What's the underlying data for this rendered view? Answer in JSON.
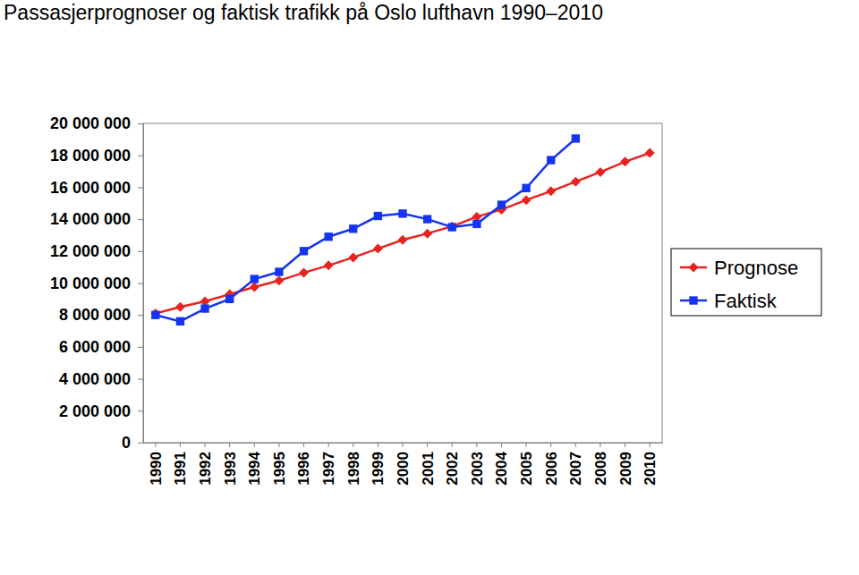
{
  "chart_data": {
    "type": "line",
    "title": "Passasjerprognoser og faktisk trafikk på Oslo lufthavn 1990–2010",
    "categories": [
      "1990",
      "1991",
      "1992",
      "1993",
      "1994",
      "1995",
      "1996",
      "1997",
      "1998",
      "1999",
      "2000",
      "2001",
      "2002",
      "2003",
      "2004",
      "2005",
      "2006",
      "2007",
      "2008",
      "2009",
      "2010"
    ],
    "series": [
      {
        "name": "Prognose",
        "color": "#e8231f",
        "marker": "diamond",
        "line_style": "solid",
        "values": [
          8100000,
          8500000,
          8850000,
          9300000,
          9750000,
          10150000,
          10650000,
          11100000,
          11600000,
          12150000,
          12700000,
          13100000,
          13550000,
          14150000,
          14600000,
          15200000,
          15750000,
          16350000,
          16950000,
          17600000,
          18150000
        ]
      },
      {
        "name": "Faktisk",
        "color": "#1433f2",
        "marker": "square",
        "line_style": "solid",
        "values": [
          8000000,
          7600000,
          8400000,
          9000000,
          10250000,
          10700000,
          12000000,
          12900000,
          13400000,
          14200000,
          14350000,
          14000000,
          13500000,
          13700000,
          14900000,
          15950000,
          17700000,
          19050000,
          null,
          null,
          null
        ]
      }
    ],
    "ylim": [
      0,
      20000000
    ],
    "yticks": [
      0,
      {
        "value": 2000000,
        "label": "2 000 000"
      },
      {
        "value": 4000000,
        "label": "4 000 000"
      },
      {
        "value": 6000000,
        "label": "6 000 000"
      },
      {
        "value": 8000000,
        "label": "8 000 000"
      },
      {
        "value": 10000000,
        "label": "10 000 000"
      },
      {
        "value": 12000000,
        "label": "12 000 000"
      },
      {
        "value": 14000000,
        "label": "14 000 000"
      },
      {
        "value": 16000000,
        "label": "16 000 000"
      },
      {
        "value": 18000000,
        "label": "18 000 000"
      },
      {
        "value": 20000000,
        "label": "20 000 000"
      }
    ],
    "grid": false,
    "legend": "right"
  }
}
